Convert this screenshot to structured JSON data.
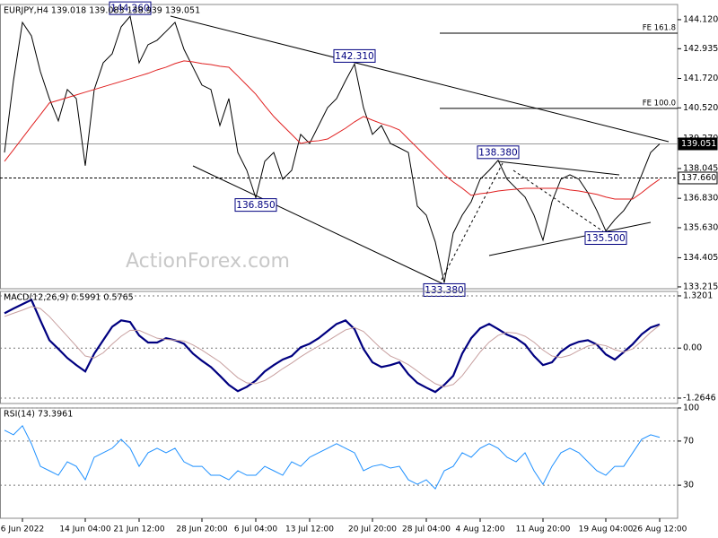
{
  "chart_data": [
    {
      "type": "line",
      "title": "EURJPY,H4  139.018 139.083 138.939 139.051",
      "watermark": "ActionForex.com",
      "ylim": [
        133.14,
        144.74
      ],
      "yticks": [
        {
          "value": 144.12,
          "label": "144.120"
        },
        142.935,
        {
          "value": 141.72,
          "label": "141.720"
        },
        {
          "value": 140.52,
          "label": "140.520"
        },
        {
          "value": 139.27,
          "label": "139.270"
        },
        138.045,
        {
          "value": 136.83,
          "label": "136.830"
        },
        {
          "value": 135.63,
          "label": "135.630"
        },
        134.405,
        133.215
      ],
      "grid": false,
      "series": [
        {
          "color": "#000000",
          "values": [
            138.7,
            141.63,
            144.01,
            143.46,
            142.0,
            140.9,
            139.99,
            141.27,
            140.9,
            138.16,
            141.27,
            142.36,
            142.73,
            143.83,
            144.26,
            142.36,
            143.1,
            143.28,
            143.64,
            144.01,
            142.91,
            142.18,
            141.45,
            141.27,
            139.8,
            140.9,
            138.7,
            137.97,
            136.85,
            138.34,
            138.7,
            137.61,
            137.97,
            139.44,
            139.07,
            139.8,
            140.53,
            140.9,
            141.63,
            142.31,
            140.53,
            139.44,
            139.8,
            139.07,
            138.89,
            138.7,
            136.51,
            136.14,
            135.05,
            133.38,
            135.41,
            136.14,
            136.69,
            137.61,
            137.97,
            138.38,
            137.61,
            137.24,
            136.88,
            136.14,
            135.12,
            136.69,
            137.61,
            137.79,
            137.61,
            137.06,
            136.33,
            135.5,
            135.96,
            136.33,
            136.88,
            137.79,
            138.7,
            139.051
          ]
        },
        {
          "color": "#e02020",
          "values": [
            138.34,
            138.81,
            139.29,
            139.77,
            140.24,
            140.72,
            140.83,
            140.94,
            141.05,
            141.16,
            141.27,
            141.38,
            141.49,
            141.6,
            141.71,
            141.82,
            141.93,
            142.07,
            142.18,
            142.33,
            142.44,
            142.4,
            142.33,
            142.29,
            142.22,
            142.18,
            141.82,
            141.45,
            141.08,
            140.61,
            140.17,
            139.8,
            139.44,
            139.07,
            139.15,
            139.18,
            139.25,
            139.47,
            139.69,
            139.95,
            140.17,
            140.02,
            139.88,
            139.77,
            139.62,
            139.25,
            138.89,
            138.52,
            138.16,
            137.79,
            137.5,
            137.24,
            136.95,
            137.02,
            137.06,
            137.13,
            137.17,
            137.2,
            137.24,
            137.24,
            137.24,
            137.24,
            137.24,
            137.17,
            137.13,
            137.06,
            136.99,
            136.88,
            136.8,
            136.8,
            136.8,
            137.06,
            137.35,
            137.61
          ]
        }
      ],
      "annotations": [
        {
          "label": "144.260",
          "value": 144.26
        },
        {
          "label": "142.310",
          "value": 142.31
        },
        {
          "label": "138.380",
          "value": 138.38
        },
        {
          "label": "136.850",
          "value": 136.85
        },
        {
          "label": "133.380",
          "value": 133.38
        },
        {
          "label": "135.500",
          "value": 135.5
        }
      ],
      "levels": [
        {
          "label": "139.051",
          "value": 139.051,
          "style": "solid"
        },
        {
          "label": "137.660",
          "value": 137.66,
          "style": "dashed"
        }
      ],
      "fibo": [
        {
          "label": "FE 161.8",
          "value": 143.57
        },
        {
          "label": "FE 100.0",
          "value": 140.5
        }
      ]
    },
    {
      "type": "line",
      "title": "MACD(12,26,9) 0.5991 0.5765",
      "ylim": [
        -1.401,
        1.433
      ],
      "yticks": [
        1.3201,
        {
          "value": 0,
          "label": "0.00"
        },
        -1.2646
      ],
      "grid": true,
      "series": [
        {
          "color": "#000080",
          "values": [
            0.88,
            1.0,
            1.11,
            1.22,
            0.7,
            0.2,
            -0.02,
            -0.25,
            -0.43,
            -0.59,
            -0.14,
            0.2,
            0.54,
            0.7,
            0.66,
            0.32,
            0.14,
            0.14,
            0.25,
            0.2,
            0.11,
            -0.14,
            -0.32,
            -0.48,
            -0.7,
            -0.93,
            -1.09,
            -0.98,
            -0.82,
            -0.59,
            -0.43,
            -0.29,
            -0.2,
            0.02,
            0.11,
            0.25,
            0.43,
            0.61,
            0.7,
            0.48,
            -0.02,
            -0.36,
            -0.48,
            -0.43,
            -0.36,
            -0.66,
            -0.88,
            -1.0,
            -1.11,
            -0.93,
            -0.7,
            -0.14,
            0.25,
            0.5,
            0.61,
            0.48,
            0.34,
            0.25,
            0.09,
            -0.2,
            -0.43,
            -0.36,
            -0.09,
            0.07,
            0.16,
            0.2,
            0.09,
            -0.16,
            -0.29,
            -0.1,
            0.1,
            0.35,
            0.52,
            0.5991
          ]
        },
        {
          "color": "#c8a0a0",
          "values": [
            0.8,
            0.88,
            0.96,
            1.05,
            1.0,
            0.8,
            0.55,
            0.3,
            0.05,
            -0.2,
            -0.25,
            -0.12,
            0.1,
            0.3,
            0.45,
            0.45,
            0.35,
            0.25,
            0.22,
            0.2,
            0.18,
            0.08,
            -0.05,
            -0.2,
            -0.35,
            -0.55,
            -0.75,
            -0.88,
            -0.9,
            -0.82,
            -0.68,
            -0.52,
            -0.38,
            -0.22,
            -0.08,
            0.05,
            0.18,
            0.32,
            0.46,
            0.52,
            0.42,
            0.2,
            -0.02,
            -0.2,
            -0.3,
            -0.42,
            -0.58,
            -0.75,
            -0.9,
            -0.98,
            -0.92,
            -0.7,
            -0.4,
            -0.1,
            0.15,
            0.32,
            0.4,
            0.38,
            0.3,
            0.15,
            -0.05,
            -0.2,
            -0.24,
            -0.18,
            -0.06,
            0.05,
            0.1,
            0.06,
            -0.04,
            -0.1,
            -0.02,
            0.18,
            0.4,
            0.5765
          ]
        }
      ]
    },
    {
      "type": "line",
      "title": "RSI(14) 73.3961",
      "ylim": [
        0,
        100
      ],
      "yticks": [
        100,
        70,
        30
      ],
      "grid": true,
      "series": [
        {
          "color": "#1e90ff",
          "values": [
            79.8,
            75.7,
            83.9,
            67.6,
            47.1,
            43.1,
            39.0,
            51.2,
            47.1,
            34.9,
            55.3,
            59.4,
            63.5,
            71.6,
            63.5,
            47.1,
            59.4,
            63.5,
            59.4,
            63.5,
            51.2,
            47.1,
            47.1,
            39.0,
            39.0,
            34.9,
            43.1,
            39.0,
            39.0,
            47.1,
            43.1,
            39.0,
            51.2,
            47.1,
            55.3,
            59.4,
            63.5,
            67.6,
            63.5,
            59.4,
            43.1,
            47.1,
            48.8,
            45.5,
            47.1,
            34.9,
            30.8,
            34.9,
            26.7,
            43.1,
            47.1,
            59.4,
            55.3,
            63.5,
            67.6,
            63.5,
            55.3,
            51.2,
            59.4,
            43.1,
            30.8,
            47.1,
            59.4,
            63.5,
            59.4,
            51.2,
            43.1,
            39.0,
            47.1,
            47.1,
            59.4,
            71.6,
            75.7,
            73.3961
          ]
        }
      ],
      "categories": [
        null,
        null,
        "6 Jun 2022",
        null,
        null,
        null,
        null,
        null,
        null,
        "14 Jun 04:00",
        null,
        null,
        null,
        null,
        null,
        "21 Jun 12:00",
        null,
        null,
        null,
        null,
        null,
        null,
        "28 Jun 20:00",
        null,
        null,
        null,
        null,
        null,
        "6 Jul 04:00",
        null,
        null,
        null,
        null,
        null,
        "13 Jul 12:00",
        null,
        null,
        null,
        null,
        null,
        null,
        "20 Jul 20:00",
        null,
        null,
        null,
        null,
        null,
        "28 Jul 04:00",
        null,
        null,
        null,
        null,
        null,
        "4 Aug 12:00",
        null,
        null,
        null,
        null,
        null,
        null,
        "11 Aug 20:00",
        null,
        null,
        null,
        null,
        null,
        null,
        "19 Aug 04:00",
        null,
        null,
        null,
        null,
        null,
        "26 Aug 12:00"
      ]
    }
  ]
}
